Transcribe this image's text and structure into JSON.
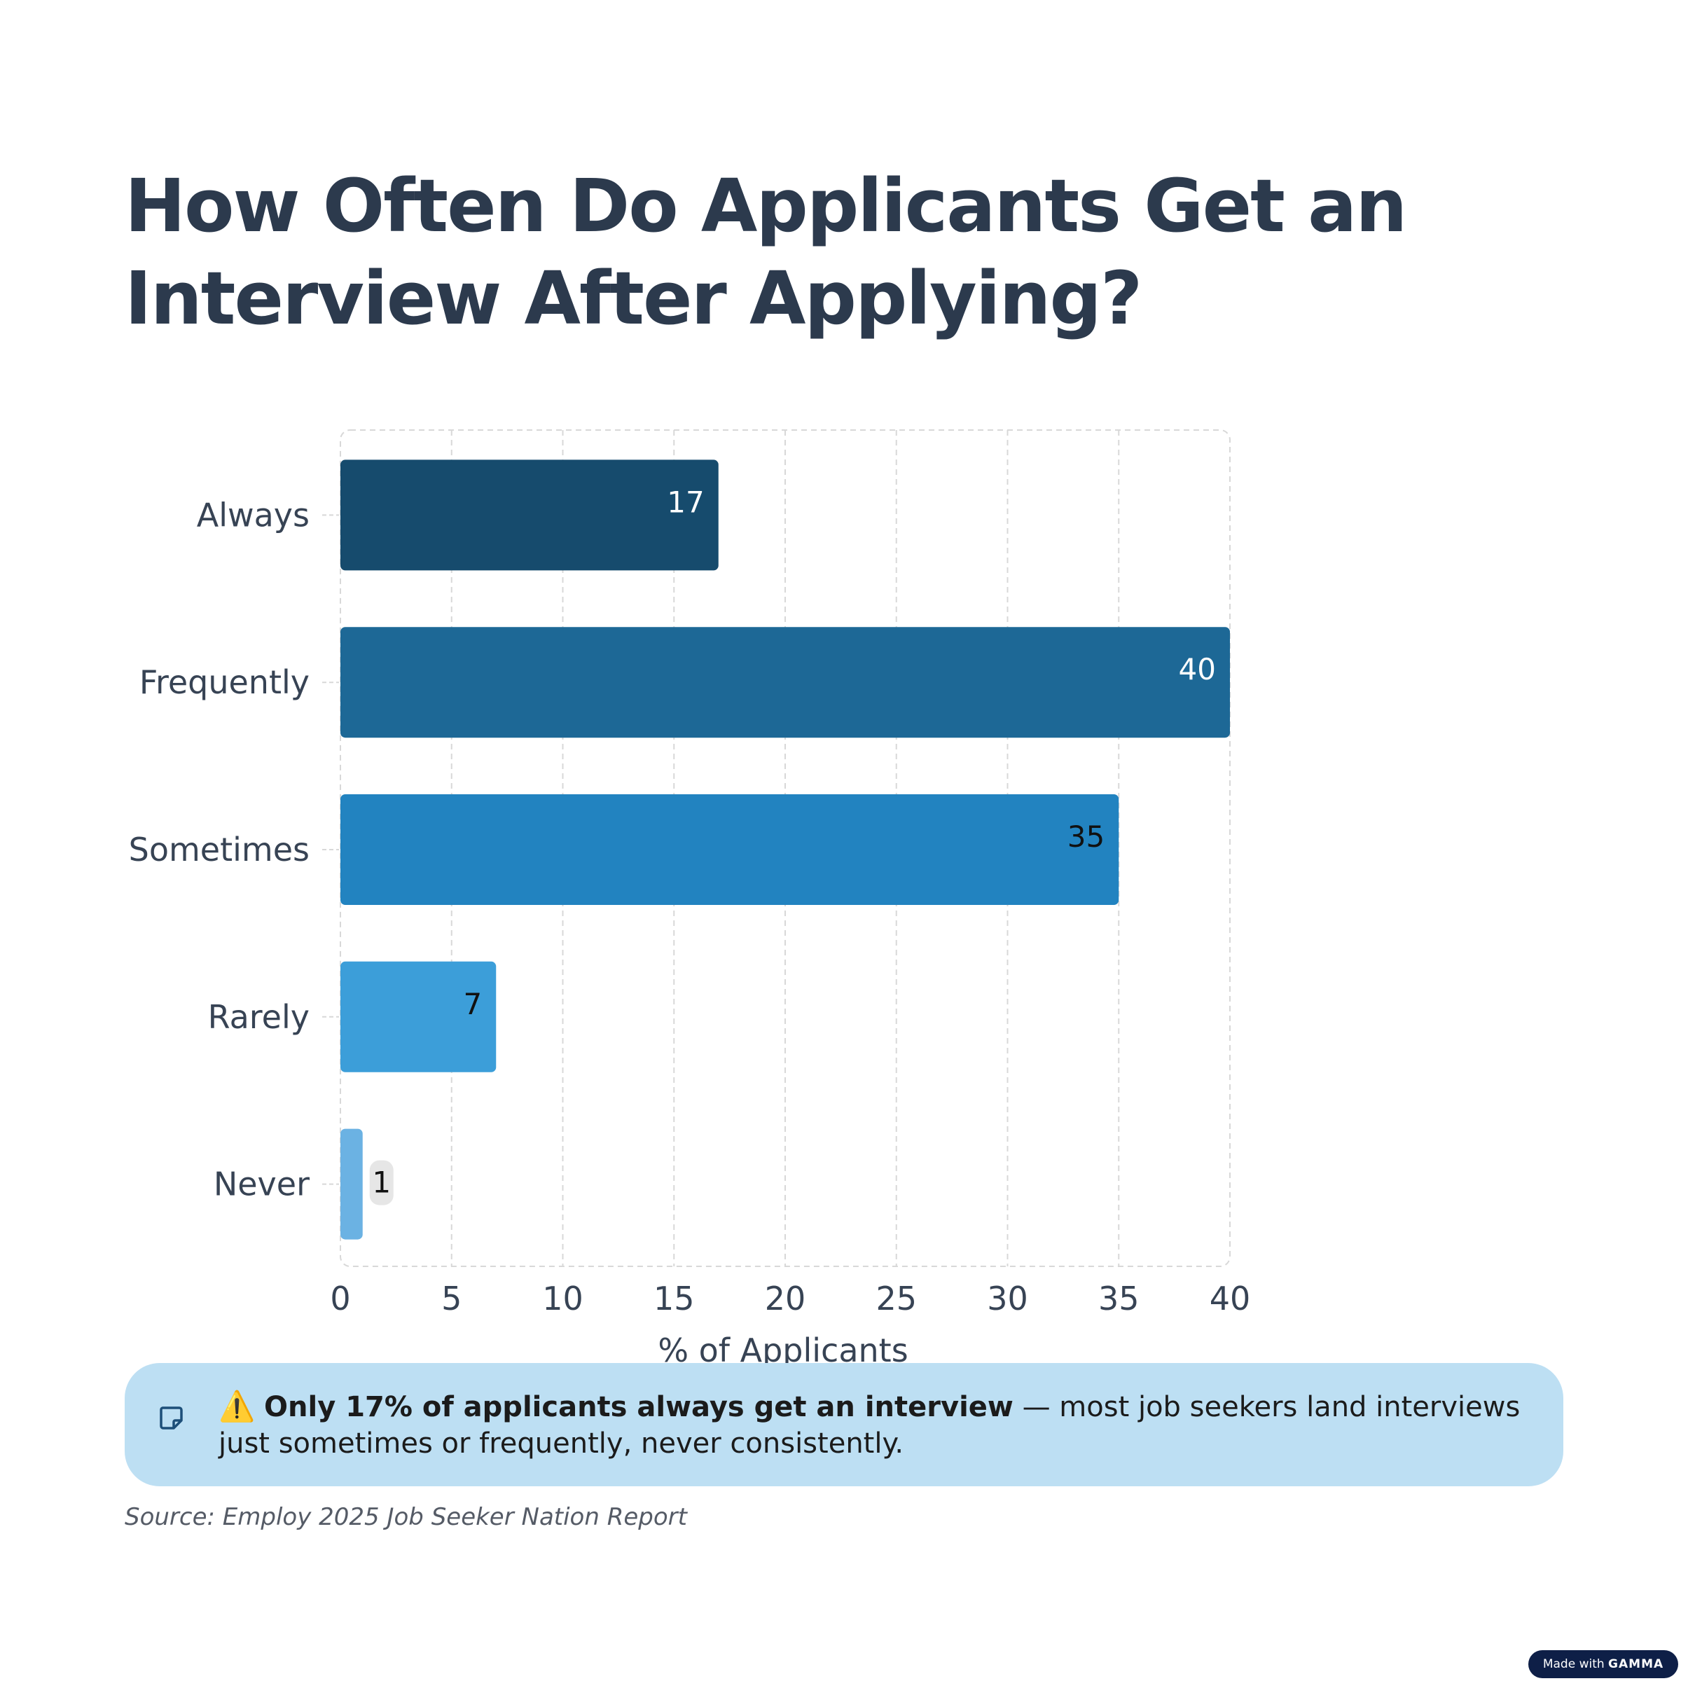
{
  "title": "How Often Do Applicants Get an Interview After Applying?",
  "chart_data": {
    "type": "bar",
    "orientation": "horizontal",
    "categories": [
      "Always",
      "Frequently",
      "Sometimes",
      "Rarely",
      "Never"
    ],
    "values": [
      17,
      40,
      35,
      7,
      1
    ],
    "value_labels": [
      "17",
      "40",
      "35",
      "7",
      "1"
    ],
    "xlabel": "% of Applicants",
    "ylabel": "",
    "xlim": [
      0,
      40
    ],
    "xticks": [
      0,
      5,
      10,
      15,
      20,
      25,
      30,
      35,
      40
    ],
    "grid": true,
    "bar_colors": [
      "#164b6d",
      "#1d6896",
      "#2283c0",
      "#3c9ed9",
      "#6bb2e3"
    ],
    "label_colors": [
      "#ffffff",
      "#ffffff",
      "#111111",
      "#111111",
      "#111111"
    ]
  },
  "callout": {
    "icon": "note-icon",
    "emoji": "⚠️",
    "bold_text": "Only 17% of applicants always get an interview",
    "rest_text": " — most job seekers land interviews just sometimes or frequently, never consistently."
  },
  "source": "Source: Employ 2025 Job Seeker Nation Report",
  "badge": {
    "prefix": "Made with ",
    "brand": "GAMMA"
  },
  "colors": {
    "title": "#2c3a4d",
    "axis_text": "#374354",
    "grid": "#d8d8d8",
    "callout_bg": "#bddff3",
    "badge_bg": "#0e1f47"
  }
}
